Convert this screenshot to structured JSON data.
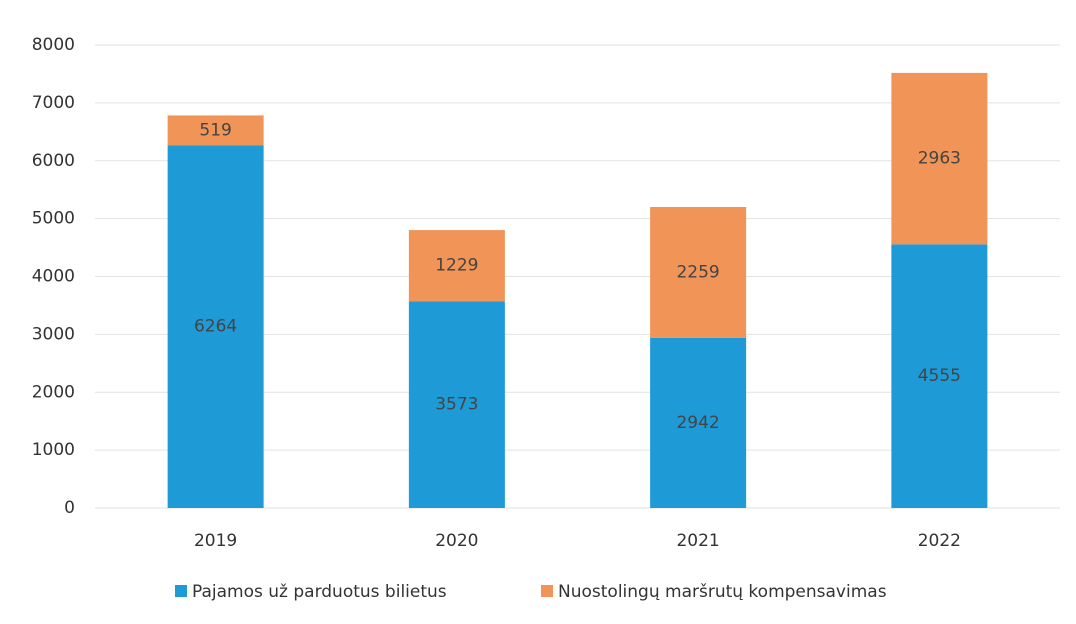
{
  "chart_data": {
    "type": "stacked_bar",
    "categories": [
      "2019",
      "2020",
      "2021",
      "2022"
    ],
    "series": [
      {
        "name": "Pajamos už parduotus bilietus",
        "color": "#1e9bd7",
        "values": [
          6264,
          3573,
          2942,
          4555
        ]
      },
      {
        "name": "Nuostolingų maršrutų kompensavimas",
        "color": "#f09457",
        "values": [
          519,
          1229,
          2259,
          2963
        ]
      }
    ],
    "ylim": [
      0,
      8000
    ],
    "yticks": [
      0,
      1000,
      2000,
      3000,
      4000,
      5000,
      6000,
      7000,
      8000
    ],
    "grid": true,
    "legend": "bottom"
  }
}
